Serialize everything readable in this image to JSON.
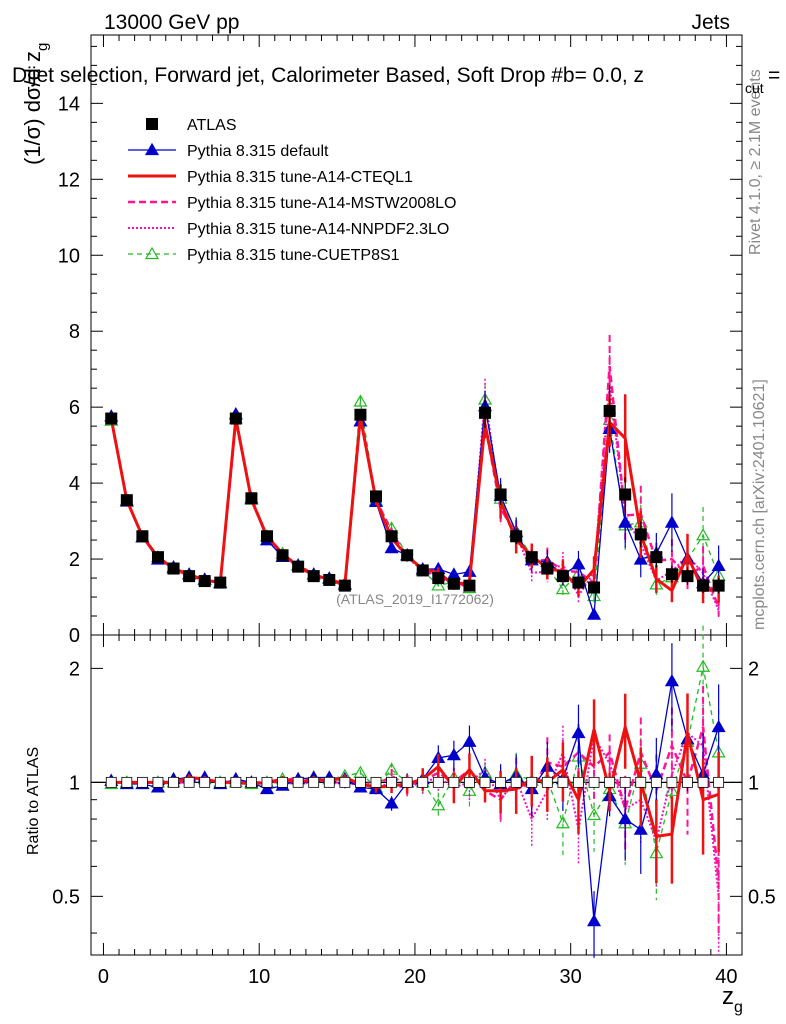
{
  "header": {
    "left": "13000 GeV pp",
    "right": "Jets",
    "plot_title": "Dijet selection, Forward jet, Calorimeter Based, Soft Drop #b",
    "plot_title_tail": "= 0.0, z",
    "plot_title_sub": "cut",
    "plot_title_end": " ="
  },
  "side_labels": {
    "rivet": "Rivet 4.1.0, ≥ 2.1M events",
    "mcplots": "mcplots.cern.ch [arXiv:2401.10621]"
  },
  "watermark": "(ATLAS_2019_I1772062)",
  "colors": {
    "atlas": "#000000",
    "default": "#0000cc",
    "cteql1": "#ee1111",
    "mstw": "#ff1493",
    "nnpdf": "#ee11cc",
    "cuetp": "#22bb22"
  },
  "chart_data": {
    "type": "scatter",
    "title": "Dijet selection, Forward jet, Calorimeter Based, Soft Drop #b = 0.0, z_cut =",
    "xlabel": "z_g",
    "ylabel": "(1/σ) dσ/d z_g",
    "ratio_ylabel": "Ratio to ATLAS",
    "xlim": [
      -0.8,
      41
    ],
    "ylim": [
      0,
      15.8
    ],
    "ratio_ylim": [
      0.35,
      2.45
    ],
    "x_ticks": [
      0,
      10,
      20,
      30,
      40
    ],
    "y_ticks": [
      0,
      2,
      4,
      6,
      8,
      10,
      12,
      14
    ],
    "ratio_ticks": [
      0.5,
      1,
      2
    ],
    "x": [
      0.5,
      1.5,
      2.5,
      3.5,
      4.5,
      5.5,
      6.5,
      7.5,
      8.5,
      9.5,
      10.5,
      11.5,
      12.5,
      13.5,
      14.5,
      15.5,
      16.5,
      17.5,
      18.5,
      19.5,
      20.5,
      21.5,
      22.5,
      23.5,
      24.5,
      25.5,
      26.5,
      27.5,
      28.5,
      29.5,
      30.5,
      31.5,
      32.5,
      33.5,
      34.5,
      35.5,
      36.5,
      37.5,
      38.5,
      39.5
    ],
    "atlas": [
      5.7,
      3.55,
      2.6,
      2.05,
      1.75,
      1.55,
      1.42,
      1.38,
      5.7,
      3.6,
      2.6,
      2.1,
      1.8,
      1.55,
      1.45,
      1.3,
      5.8,
      3.65,
      2.6,
      2.1,
      1.7,
      1.5,
      1.35,
      1.3,
      5.85,
      3.7,
      2.6,
      2.05,
      1.75,
      1.55,
      1.38,
      1.25,
      5.9,
      3.7,
      2.65,
      2.05,
      1.6,
      1.55,
      1.3,
      1.3
    ],
    "series": [
      {
        "name": "ATLAS",
        "key": "atlas",
        "style": "marker"
      },
      {
        "name": "Pythia 8.315 default",
        "key": "default",
        "ratio": [
          1.01,
          0.99,
          0.99,
          0.97,
          1.02,
          1.03,
          1.03,
          0.99,
          1.02,
          1.0,
          0.96,
          0.98,
          1.02,
          1.03,
          1.03,
          1.02,
          0.97,
          0.96,
          0.88,
          1.0,
          1.02,
          1.16,
          1.18,
          1.28,
          1.03,
          0.99,
          1.04,
          0.96,
          1.1,
          1.02,
          1.35,
          0.43,
          0.92,
          0.8,
          0.75,
          1.05,
          1.85,
          1.3,
          1.05,
          1.4
        ]
      },
      {
        "name": "Pythia 8.315 tune-A14-CTEQL1",
        "key": "cteql1",
        "ratio": [
          1.0,
          1.0,
          1.0,
          1.0,
          1.0,
          1.03,
          1.02,
          1.0,
          1.0,
          0.99,
          1.0,
          1.02,
          1.0,
          1.02,
          1.01,
          1.03,
          0.99,
          0.97,
          0.98,
          0.99,
          1.02,
          1.1,
          0.97,
          1.08,
          0.95,
          0.95,
          0.96,
          1.02,
          1.0,
          1.08,
          0.9,
          1.38,
          0.95,
          1.4,
          1.0,
          0.72,
          0.73,
          1.35,
          0.9,
          0.93
        ]
      },
      {
        "name": "Pythia 8.315 tune-A14-MSTW2008LO",
        "key": "mstw",
        "ratio": [
          1.0,
          1.0,
          1.0,
          1.0,
          1.0,
          1.0,
          1.02,
          1.0,
          0.99,
          1.0,
          1.0,
          1.01,
          1.03,
          1.02,
          1.0,
          1.0,
          0.99,
          0.98,
          1.04,
          0.98,
          1.01,
          1.06,
          1.0,
          1.08,
          0.95,
          0.9,
          1.02,
          0.95,
          1.13,
          1.1,
          1.2,
          1.1,
          1.2,
          0.85,
          1.2,
          0.95,
          1.25,
          1.0,
          1.4,
          0.55
        ]
      },
      {
        "name": "Pythia 8.315 tune-A14-NNPDF2.3LO",
        "key": "nnpdf",
        "ratio": [
          1.0,
          1.0,
          0.99,
          1.01,
          1.0,
          1.02,
          1.01,
          1.0,
          1.01,
          0.99,
          1.0,
          1.0,
          0.99,
          1.0,
          1.02,
          0.98,
          1.0,
          0.99,
          0.98,
          0.97,
          1.0,
          1.03,
          0.97,
          1.0,
          1.08,
          0.9,
          1.02,
          0.8,
          0.95,
          1.2,
          0.75,
          1.32,
          1.12,
          0.85,
          0.9,
          0.7,
          1.05,
          1.35,
          1.25,
          0.5
        ]
      },
      {
        "name": "Pythia 8.315 tune-CUETP8S1",
        "key": "cuetp",
        "ratio": [
          0.99,
          1.0,
          0.99,
          1.0,
          1.0,
          1.03,
          1.02,
          1.0,
          1.0,
          0.99,
          1.0,
          1.02,
          1.02,
          1.03,
          1.02,
          1.04,
          1.06,
          0.97,
          1.08,
          1.0,
          1.0,
          0.87,
          1.03,
          0.95,
          1.06,
          0.97,
          1.05,
          1.01,
          1.02,
          0.78,
          1.17,
          0.82,
          0.96,
          0.78,
          1.12,
          0.65,
          0.95,
          1.28,
          2.02,
          1.2
        ]
      }
    ]
  }
}
